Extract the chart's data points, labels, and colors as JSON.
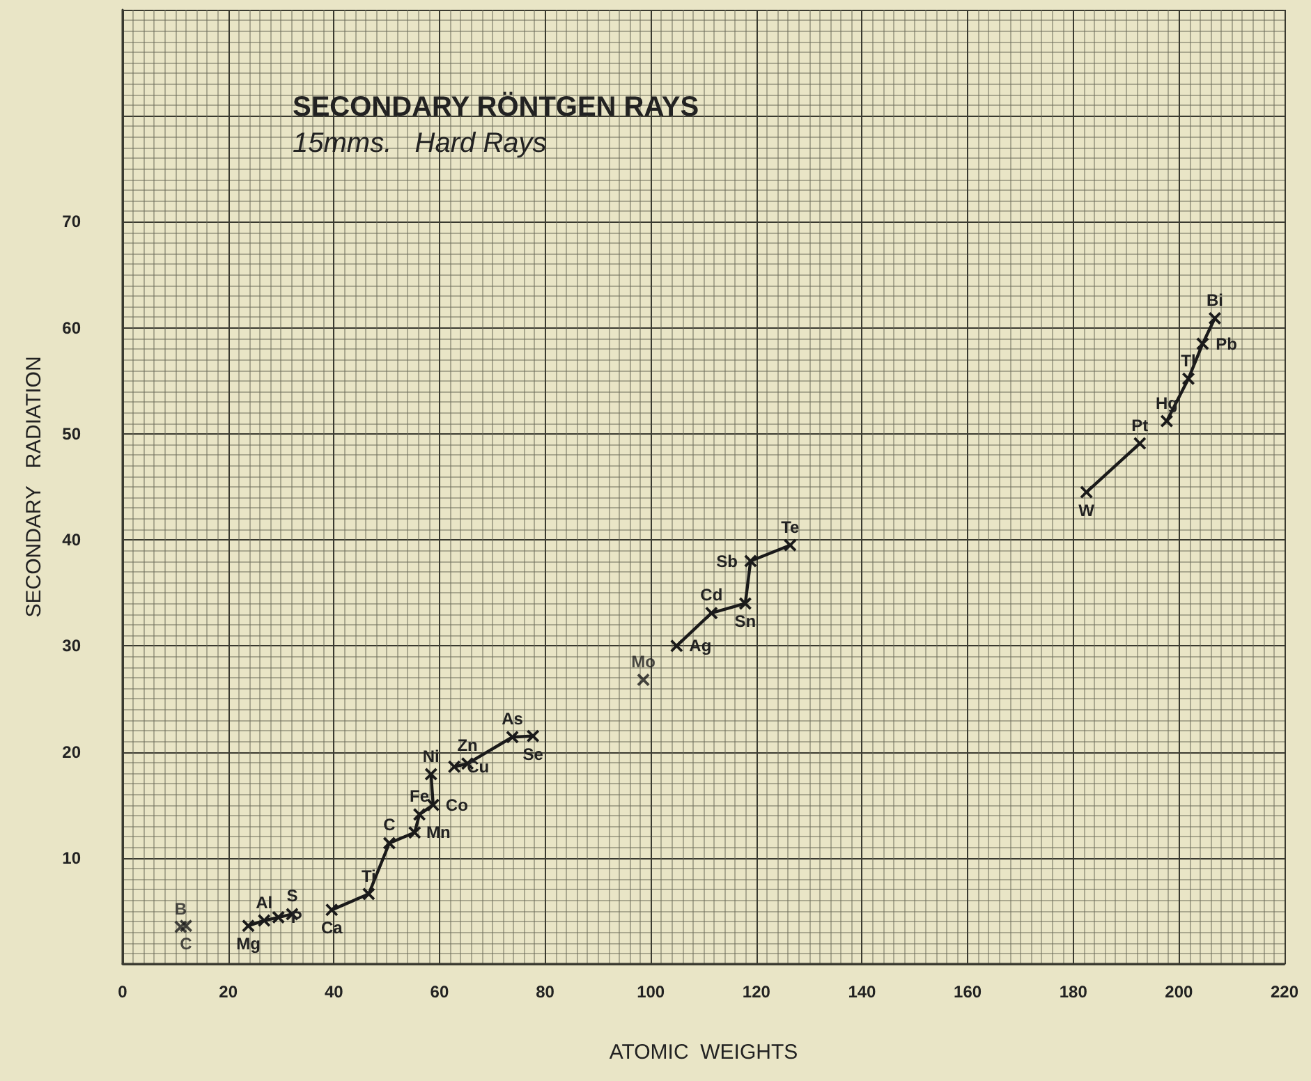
{
  "chart_data": {
    "type": "line",
    "title": "SECONDARY RÖNTGEN RAYS",
    "subtitle": "15mms.   Hard Rays",
    "xlabel": "ATOMIC  WEIGHTS",
    "ylabel": "SECONDARY   RADIATION",
    "xlim": [
      0,
      220
    ],
    "xticks": [
      0,
      20,
      40,
      60,
      80,
      100,
      120,
      140,
      160,
      180,
      200,
      220
    ],
    "ylim": [
      0,
      90
    ],
    "yticks": [
      10,
      20,
      30,
      40,
      50,
      60,
      70
    ],
    "grid": true,
    "marker": "cross",
    "line_style": "solid",
    "series": [
      {
        "type": "scatter",
        "color": "#1a1a1a",
        "x": [
          11,
          12
        ],
        "values": [
          3.5,
          3.6
        ],
        "value_labels": [
          "B",
          "C"
        ]
      },
      {
        "color": "#1a1a1a",
        "x": [
          23.8,
          26.8,
          29.5,
          32.1
        ],
        "values": [
          3.6,
          4.1,
          4.4,
          4.7
        ],
        "value_labels": [
          "Mg",
          "Al",
          "P",
          "S"
        ]
      },
      {
        "color": "#1a1a1a",
        "x": [
          39.6,
          46.6,
          50.5,
          55.3,
          56.2,
          58.8,
          58.4
        ],
        "values": [
          5.1,
          6.6,
          11.4,
          12.4,
          14.1,
          15.0,
          17.9
        ],
        "value_labels": [
          "Ca",
          "Ti",
          "C",
          "Mn",
          "Fe",
          "Co",
          "Ni"
        ]
      },
      {
        "color": "#1a1a1a",
        "x": [
          62.8,
          65.3,
          73.8,
          77.7
        ],
        "values": [
          18.6,
          18.9,
          21.4,
          21.5
        ],
        "value_labels": [
          "Cu",
          "Zn",
          "As",
          "Se"
        ]
      },
      {
        "type": "scatter",
        "color": "#1a1a1a",
        "x": [
          98.6
        ],
        "values": [
          26.8
        ],
        "value_labels": [
          "Mo"
        ]
      },
      {
        "color": "#1a1a1a",
        "x": [
          104.9,
          111.5,
          117.9,
          118.9,
          126.4
        ],
        "values": [
          30.0,
          33.1,
          34.0,
          38.0,
          39.5
        ],
        "value_labels": [
          "Ag",
          "Cd",
          "Sn",
          "Sb",
          "Te"
        ]
      },
      {
        "color": "#1a1a1a",
        "x": [
          182.5,
          192.6
        ],
        "values": [
          44.5,
          49.1
        ],
        "value_labels": [
          "W",
          "Pt"
        ]
      },
      {
        "color": "#1a1a1a",
        "x": [
          197.7,
          201.8,
          204.5,
          206.8
        ],
        "values": [
          51.2,
          55.2,
          58.5,
          60.9
        ],
        "value_labels": [
          "Hg",
          "Tl",
          "Pb",
          "Bi"
        ]
      }
    ]
  }
}
